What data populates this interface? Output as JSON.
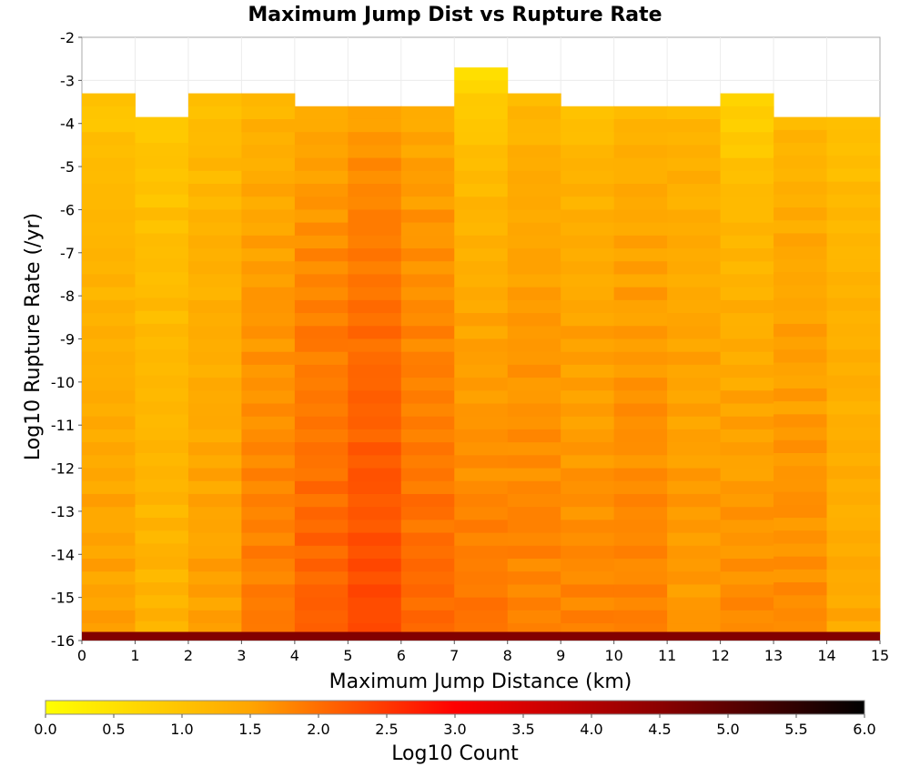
{
  "chart_data": {
    "type": "heatmap",
    "title": "Maximum Jump Dist vs Rupture Rate",
    "xlabel": "Maximum Jump Distance (km)",
    "ylabel": "Log10 Rupture Rate (/yr)",
    "xlim": [
      0,
      15
    ],
    "ylim": [
      -16,
      -2
    ],
    "x_ticks": [
      "0",
      "1",
      "2",
      "3",
      "4",
      "5",
      "6",
      "7",
      "8",
      "9",
      "10",
      "11",
      "12",
      "13",
      "14",
      "15"
    ],
    "y_ticks": [
      "-2",
      "-3",
      "-4",
      "-5",
      "-6",
      "-7",
      "-8",
      "-9",
      "-10",
      "-11",
      "-12",
      "-13",
      "-14",
      "-15",
      "-16"
    ],
    "x_bin_width": 1,
    "y_bin_width": 0.3,
    "colorbar": {
      "label": "Log10 Count",
      "range": [
        0,
        6
      ],
      "ticks": [
        "0.0",
        "0.5",
        "1.0",
        "1.5",
        "2.0",
        "2.5",
        "3.0",
        "3.5",
        "4.0",
        "4.5",
        "5.0",
        "5.5",
        "6.0"
      ],
      "colors": [
        "#ffff00",
        "#ffa500",
        "#ff0000",
        "#8b0000",
        "#000000"
      ],
      "color_stops": [
        0,
        1.5,
        3.0,
        4.5,
        6.0
      ]
    },
    "column_profiles": [
      {
        "x": 0.5,
        "top": -3.3,
        "count_range": [
          0.85,
          1.55
        ]
      },
      {
        "x": 1.5,
        "top": -3.85,
        "count_range": [
          0.85,
          1.3
        ]
      },
      {
        "x": 2.5,
        "top": -3.3,
        "count_range": [
          0.95,
          1.55
        ]
      },
      {
        "x": 3.5,
        "top": -3.3,
        "count_range": [
          1.05,
          1.9
        ]
      },
      {
        "x": 4.5,
        "top": -3.6,
        "count_range": [
          1.2,
          2.15
        ]
      },
      {
        "x": 5.5,
        "top": -3.6,
        "count_range": [
          1.3,
          2.35
        ]
      },
      {
        "x": 6.5,
        "top": -3.6,
        "count_range": [
          1.25,
          2.05
        ]
      },
      {
        "x": 7.5,
        "top": -2.7,
        "count_range": [
          0.4,
          1.95
        ]
      },
      {
        "x": 8.5,
        "top": -3.3,
        "count_range": [
          1.05,
          1.85
        ]
      },
      {
        "x": 9.5,
        "top": -3.6,
        "count_range": [
          0.9,
          1.8
        ]
      },
      {
        "x": 10.5,
        "top": -3.6,
        "count_range": [
          1.05,
          1.85
        ]
      },
      {
        "x": 11.5,
        "top": -3.6,
        "count_range": [
          1.1,
          1.65
        ]
      },
      {
        "x": 12.5,
        "top": -3.3,
        "count_range": [
          0.55,
          1.75
        ]
      },
      {
        "x": 13.5,
        "top": -3.85,
        "count_range": [
          1.05,
          1.75
        ]
      },
      {
        "x": 14.5,
        "top": -3.85,
        "count_range": [
          0.95,
          1.45
        ]
      }
    ],
    "bottom_row": {
      "y": -15.95,
      "count": 4.6
    }
  }
}
